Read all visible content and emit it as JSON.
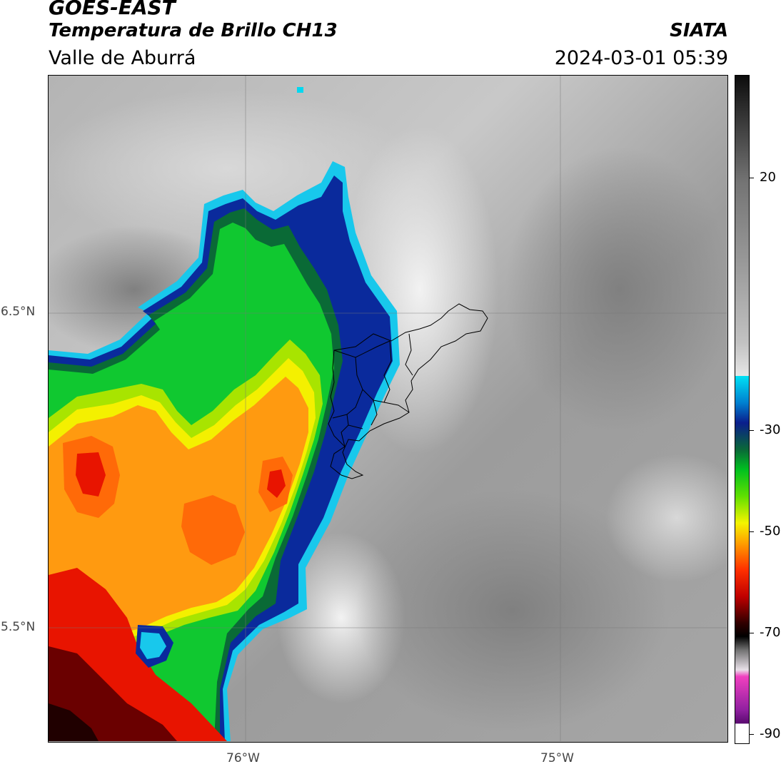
{
  "header": {
    "satellite": "GOES-EAST",
    "product": "Temperatura de Brillo CH13",
    "region": "Valle de Aburrá",
    "organization": "SIATA",
    "timestamp": "2024-03-01 05:39"
  },
  "map": {
    "latitude_labels": [
      "6.5°N",
      "5.5°N"
    ],
    "longitude_labels": [
      "76°W",
      "75°W"
    ],
    "colors": {
      "warm_cloudless": "#b0b0b0",
      "cold_cloud_cyan": "#00d8f0",
      "cold_cloud_blue": "#0a2a9c",
      "green": "#00c820",
      "yellow": "#f4f400",
      "orange": "#ff8c00",
      "red": "#e01000",
      "dark_red": "#3a0000"
    }
  },
  "colorbar": {
    "ticks": [
      "20",
      "-30",
      "-50",
      "-70",
      "-90"
    ]
  }
}
